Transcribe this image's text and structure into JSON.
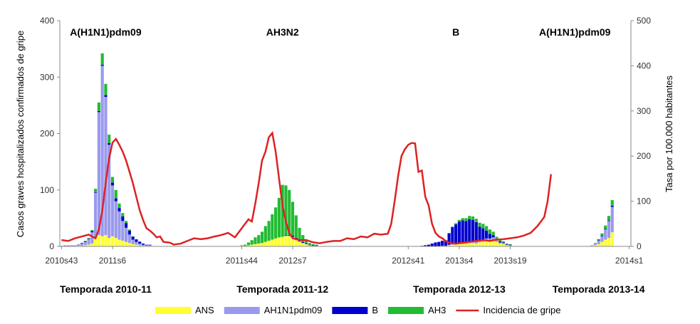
{
  "chart_data": {
    "type": "bar",
    "title": "",
    "ylabel": "Casos graves hospitalizados confirmados de gripe",
    "y2label": "Tasa por 100.000 habitantes",
    "ylim": [
      0,
      400
    ],
    "y2lim": [
      0,
      500
    ],
    "yticks": [
      "0",
      "100",
      "200",
      "300",
      "400"
    ],
    "y2ticks": [
      "0",
      "100",
      "200",
      "300",
      "400",
      "500"
    ],
    "n_weeks": 168,
    "xtick_labels": [
      {
        "label": "2010s43",
        "week": 0
      },
      {
        "label": "2011s6",
        "week": 15
      },
      {
        "label": "2011s44",
        "week": 53
      },
      {
        "label": "2012s7",
        "week": 68
      },
      {
        "label": "2012s41",
        "week": 102
      },
      {
        "label": "2013s4",
        "week": 117
      },
      {
        "label": "2013s19",
        "week": 132
      },
      {
        "label": "2014s1",
        "week": 167
      }
    ],
    "annotations": [
      {
        "text": "A(H1N1)pdm09",
        "week": 13
      },
      {
        "text": "AH3N2",
        "week": 65
      },
      {
        "text": "B",
        "week": 116
      },
      {
        "text": "A(H1N1)pdm09",
        "week": 151
      }
    ],
    "season_labels": [
      {
        "text": "Temporada 2010-11",
        "week": 13
      },
      {
        "text": "Temporada 2011-12",
        "week": 65
      },
      {
        "text": "Temporada 2012-13",
        "week": 117
      },
      {
        "text": "Temporada 2013-14",
        "week": 158
      }
    ],
    "stack_order": [
      "ANS",
      "AH1N1pdm09",
      "B",
      "AH3"
    ],
    "series": [
      {
        "name": "ANS",
        "color": "#ffff33",
        "segments": [
          {
            "start": 0,
            "values": [
              0,
              0,
              0,
              0,
              0,
              1,
              1,
              2,
              3,
              5,
              15,
              20,
              18,
              20,
              15,
              18,
              15,
              12,
              10,
              8,
              6,
              4,
              3,
              2,
              1,
              1,
              1,
              0
            ]
          },
          {
            "start": 52,
            "values": [
              0,
              1,
              1,
              2,
              3,
              4,
              5,
              6,
              8,
              10,
              12,
              14,
              16,
              17,
              18,
              18,
              16,
              12,
              8,
              6,
              4,
              2,
              1,
              1
            ]
          },
          {
            "start": 102,
            "values": [
              0,
              0,
              0,
              0,
              0,
              0,
              0,
              0,
              0,
              0,
              1,
              1,
              2,
              3,
              3,
              4,
              4,
              5,
              6,
              6,
              5,
              7,
              8,
              10,
              10,
              12,
              8,
              5,
              4,
              2,
              1,
              1
            ]
          },
          {
            "start": 155,
            "values": [
              0,
              1,
              2,
              4,
              8,
              12,
              15,
              25
            ]
          }
        ]
      },
      {
        "name": "AH1N1pdm09",
        "color": "#9999ee",
        "segments": [
          {
            "start": 0,
            "values": [
              1,
              2,
              2,
              2,
              2,
              3,
              4,
              6,
              10,
              20,
              80,
              218,
              302,
              245,
              165,
              90,
              65,
              50,
              35,
              25,
              15,
              8,
              5,
              3,
              2,
              1,
              1,
              0
            ]
          },
          {
            "start": 52,
            "values": [
              0,
              0,
              0,
              0,
              0,
              0,
              0,
              0,
              0,
              0,
              0,
              0,
              0,
              0,
              1,
              1,
              1,
              1,
              1,
              0,
              0,
              0,
              0,
              0
            ]
          },
          {
            "start": 102,
            "values": [
              0,
              0,
              0,
              0,
              0,
              0,
              0,
              0,
              0,
              0,
              0,
              0,
              1,
              1,
              1,
              2,
              2,
              2,
              2,
              3,
              3,
              3,
              4,
              4,
              4,
              4,
              3,
              2,
              2,
              1,
              1,
              0
            ]
          },
          {
            "start": 155,
            "values": [
              0,
              1,
              3,
              6,
              10,
              18,
              30,
              45
            ]
          }
        ]
      },
      {
        "name": "B",
        "color": "#0000cc",
        "segments": [
          {
            "start": 0,
            "values": [
              0,
              0,
              0,
              0,
              0,
              0,
              1,
              1,
              1,
              2,
              1,
              2,
              2,
              3,
              3,
              5,
              5,
              6,
              8,
              8,
              7,
              5,
              4,
              3,
              2,
              1,
              1,
              0
            ]
          },
          {
            "start": 52,
            "values": [
              0,
              0,
              0,
              0,
              0,
              0,
              0,
              0,
              0,
              0,
              0,
              0,
              0,
              0,
              1,
              1,
              2,
              2,
              2,
              2,
              1,
              1,
              1,
              1
            ]
          },
          {
            "start": 102,
            "values": [
              0,
              0,
              0,
              0,
              1,
              2,
              3,
              5,
              7,
              8,
              9,
              10,
              20,
              30,
              35,
              38,
              40,
              38,
              40,
              38,
              35,
              25,
              20,
              14,
              8,
              4,
              2,
              2,
              1,
              1,
              1,
              0
            ]
          },
          {
            "start": 155,
            "values": [
              0,
              0,
              0,
              1,
              1,
              1,
              1,
              2
            ]
          }
        ]
      },
      {
        "name": "AH3",
        "color": "#22bb33",
        "segments": [
          {
            "start": 0,
            "values": [
              0,
              0,
              0,
              0,
              0,
              0,
              0,
              1,
              1,
              2,
              6,
              15,
              20,
              20,
              15,
              10,
              15,
              8,
              6,
              4,
              2,
              1,
              1,
              1,
              0,
              0,
              0,
              0
            ]
          },
          {
            "start": 52,
            "values": [
              0,
              1,
              2,
              5,
              8,
              12,
              15,
              20,
              28,
              35,
              45,
              55,
              70,
              92,
              88,
              80,
              60,
              40,
              22,
              12,
              6,
              3,
              2,
              1
            ]
          },
          {
            "start": 102,
            "values": [
              0,
              0,
              0,
              0,
              0,
              0,
              0,
              0,
              0,
              0,
              0,
              0,
              1,
              1,
              2,
              3,
              4,
              5,
              6,
              6,
              6,
              7,
              8,
              8,
              8,
              6,
              4,
              3,
              2,
              1,
              1,
              0
            ]
          },
          {
            "start": 155,
            "values": [
              0,
              0,
              1,
              2,
              4,
              6,
              8,
              10
            ]
          }
        ]
      }
    ],
    "line": {
      "name": "Incidencia de gripe",
      "color": "#dd2222",
      "points": [
        {
          "week": 0,
          "value": 14
        },
        {
          "week": 2,
          "value": 12
        },
        {
          "week": 4,
          "value": 18
        },
        {
          "week": 6,
          "value": 22
        },
        {
          "week": 8,
          "value": 26
        },
        {
          "week": 10,
          "value": 18
        },
        {
          "week": 11,
          "value": 38
        },
        {
          "week": 12,
          "value": 80
        },
        {
          "week": 13,
          "value": 140
        },
        {
          "week": 14,
          "value": 195
        },
        {
          "week": 15,
          "value": 230
        },
        {
          "week": 16,
          "value": 238
        },
        {
          "week": 17,
          "value": 225
        },
        {
          "week": 18,
          "value": 210
        },
        {
          "week": 19,
          "value": 190
        },
        {
          "week": 20,
          "value": 165
        },
        {
          "week": 21,
          "value": 140
        },
        {
          "week": 22,
          "value": 110
        },
        {
          "week": 23,
          "value": 80
        },
        {
          "week": 24,
          "value": 58
        },
        {
          "week": 25,
          "value": 40
        },
        {
          "week": 26,
          "value": 35
        },
        {
          "week": 27,
          "value": 28
        },
        {
          "week": 28,
          "value": 20
        },
        {
          "week": 29,
          "value": 22
        },
        {
          "week": 30,
          "value": 10
        },
        {
          "week": 31,
          "value": 9
        },
        {
          "week": 32,
          "value": 8
        },
        {
          "week": 33,
          "value": 4
        },
        {
          "week": 35,
          "value": 6
        },
        {
          "week": 37,
          "value": 12
        },
        {
          "week": 39,
          "value": 18
        },
        {
          "week": 41,
          "value": 16
        },
        {
          "week": 43,
          "value": 18
        },
        {
          "week": 45,
          "value": 22
        },
        {
          "week": 47,
          "value": 25
        },
        {
          "week": 49,
          "value": 30
        },
        {
          "week": 51,
          "value": 20
        },
        {
          "week": 53,
          "value": 40
        },
        {
          "week": 55,
          "value": 60
        },
        {
          "week": 56,
          "value": 55
        },
        {
          "week": 57,
          "value": 95
        },
        {
          "week": 58,
          "value": 140
        },
        {
          "week": 59,
          "value": 190
        },
        {
          "week": 60,
          "value": 210
        },
        {
          "week": 61,
          "value": 242
        },
        {
          "week": 62,
          "value": 251
        },
        {
          "week": 63,
          "value": 210
        },
        {
          "week": 64,
          "value": 150
        },
        {
          "week": 65,
          "value": 90
        },
        {
          "week": 66,
          "value": 55
        },
        {
          "week": 67,
          "value": 30
        },
        {
          "week": 68,
          "value": 18
        },
        {
          "week": 70,
          "value": 14
        },
        {
          "week": 72,
          "value": 14
        },
        {
          "week": 74,
          "value": 9
        },
        {
          "week": 76,
          "value": 7
        },
        {
          "week": 78,
          "value": 10
        },
        {
          "week": 80,
          "value": 12
        },
        {
          "week": 82,
          "value": 12
        },
        {
          "week": 84,
          "value": 18
        },
        {
          "week": 86,
          "value": 16
        },
        {
          "week": 88,
          "value": 22
        },
        {
          "week": 90,
          "value": 20
        },
        {
          "week": 92,
          "value": 28
        },
        {
          "week": 94,
          "value": 26
        },
        {
          "week": 96,
          "value": 28
        },
        {
          "week": 97,
          "value": 50
        },
        {
          "week": 98,
          "value": 100
        },
        {
          "week": 99,
          "value": 155
        },
        {
          "week": 100,
          "value": 200
        },
        {
          "week": 101,
          "value": 215
        },
        {
          "week": 102,
          "value": 225
        },
        {
          "week": 103,
          "value": 229
        },
        {
          "week": 104,
          "value": 228
        },
        {
          "week": 105,
          "value": 165
        },
        {
          "week": 106,
          "value": 168
        },
        {
          "week": 107,
          "value": 110
        },
        {
          "week": 108,
          "value": 90
        },
        {
          "week": 109,
          "value": 50
        },
        {
          "week": 110,
          "value": 30
        },
        {
          "week": 111,
          "value": 22
        },
        {
          "week": 112,
          "value": 18
        },
        {
          "week": 113,
          "value": 12
        },
        {
          "week": 114,
          "value": 8
        },
        {
          "week": 116,
          "value": 6
        },
        {
          "week": 118,
          "value": 8
        },
        {
          "week": 120,
          "value": 10
        },
        {
          "week": 122,
          "value": 12
        },
        {
          "week": 124,
          "value": 14
        },
        {
          "week": 126,
          "value": 12
        },
        {
          "week": 128,
          "value": 15
        },
        {
          "week": 130,
          "value": 16
        },
        {
          "week": 132,
          "value": 18
        },
        {
          "week": 134,
          "value": 20
        },
        {
          "week": 136,
          "value": 24
        },
        {
          "week": 138,
          "value": 30
        },
        {
          "week": 140,
          "value": 45
        },
        {
          "week": 142,
          "value": 65
        },
        {
          "week": 143,
          "value": 100
        },
        {
          "week": 144,
          "value": 160
        }
      ]
    },
    "legend": [
      {
        "label": "ANS",
        "color": "#ffff33",
        "kind": "box"
      },
      {
        "label": "AH1N1pdm09",
        "color": "#9999ee",
        "kind": "box"
      },
      {
        "label": "B",
        "color": "#0000cc",
        "kind": "box"
      },
      {
        "label": "AH3",
        "color": "#22bb33",
        "kind": "box"
      },
      {
        "label": "Incidencia de gripe",
        "color": "#dd2222",
        "kind": "line"
      }
    ],
    "legend_position": "bottom"
  }
}
